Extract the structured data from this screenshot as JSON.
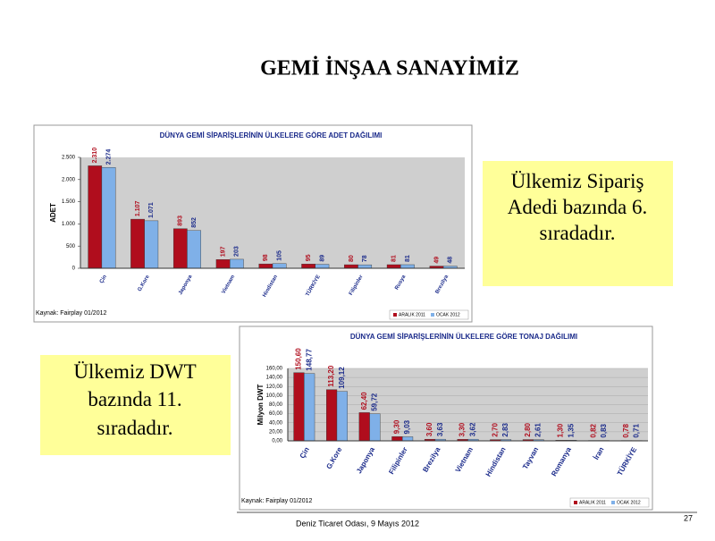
{
  "slide": {
    "title": "GEMİ İNŞAA SANAYİMİZ",
    "note1": "Ülkemiz Sipariş Adedi bazında 6. sıradadır.",
    "note2": "Ülkemiz DWT bazında 11. sıradadır.",
    "footer": "Deniz Ticaret Odası, 9 Mayıs 2012",
    "page": "27"
  },
  "chart_data": [
    {
      "type": "bar",
      "title": "DÜNYA GEMİ SİPARİŞLERİNİN ÜLKELERE GÖRE ADET DAĞILIMI",
      "ylabel": "ADET",
      "source": "Kaynak: Fairplay 01/2012",
      "categories": [
        "Çin",
        "G.Kore",
        "Japonya",
        "Vietnam",
        "Hindistan",
        "TÜRKİYE",
        "Filipinler",
        "Rusya",
        "Brezilya"
      ],
      "series": [
        {
          "name": "ARALIK 2011",
          "color": "#b00d1d",
          "values": [
            2310,
            1107,
            893,
            197,
            98,
            95,
            80,
            81,
            49
          ],
          "value_labels": [
            "2.310",
            "1.107",
            "893",
            "197",
            "98",
            "95",
            "80",
            "81",
            "49"
          ]
        },
        {
          "name": "OCAK 2012",
          "color": "#7fb0e8",
          "values": [
            2274,
            1071,
            852,
            203,
            105,
            89,
            78,
            81,
            48
          ],
          "value_labels": [
            "2.274",
            "1.071",
            "852",
            "203",
            "105",
            "89",
            "78",
            "81",
            "48"
          ]
        }
      ],
      "ylim": [
        0,
        2500
      ],
      "yticks": [
        0,
        500,
        {
          "value": 1000,
          "label": "1.000"
        },
        {
          "value": 1500,
          "label": "1.500"
        },
        {
          "value": 2000,
          "label": "2.000"
        },
        {
          "value": 2500,
          "label": "2.500"
        }
      ],
      "grid": false
    },
    {
      "type": "bar",
      "title": "DÜNYA GEMİ SİPARİŞLERİNİN ÜLKELERE GÖRE TONAJ DAĞILIMI",
      "ylabel": "Milyon DWT",
      "source": "Kaynak: Fairplay 01/2012",
      "categories": [
        "Çin",
        "G.Kore",
        "Japonya",
        "Filipinler",
        "Brezilya",
        "Vietnam",
        "Hindistan",
        "Tayvan",
        "Romanya",
        "İran",
        "TÜRKİYE"
      ],
      "series": [
        {
          "name": "ARALIK 2011",
          "color": "#b00d1d",
          "values": [
            150.6,
            113.2,
            62.4,
            9.3,
            3.6,
            3.3,
            2.7,
            2.8,
            1.3,
            0.82,
            0.78
          ],
          "value_labels": [
            "150,60",
            "113,20",
            "62,40",
            "9,30",
            "3,60",
            "3,30",
            "2,70",
            "2,80",
            "1,30",
            "0,82",
            "0,78"
          ]
        },
        {
          "name": "OCAK 2012",
          "color": "#7fb0e8",
          "values": [
            148.77,
            109.12,
            59.72,
            9.03,
            3.63,
            3.62,
            2.83,
            2.61,
            1.35,
            0.83,
            0.71
          ],
          "value_labels": [
            "148,77",
            "109,12",
            "59,72",
            "9,03",
            "3,63",
            "3,62",
            "2,83",
            "2,61",
            "1,35",
            "0,83",
            "0,71"
          ]
        }
      ],
      "ylim": [
        0,
        160
      ],
      "yticks": [
        {
          "value": 0,
          "label": "0,00"
        },
        {
          "value": 20,
          "label": "20,00"
        },
        {
          "value": 40,
          "label": "40,00"
        },
        {
          "value": 60,
          "label": "60,00"
        },
        {
          "value": 80,
          "label": "80,00"
        },
        {
          "value": 100,
          "label": "100,00"
        },
        {
          "value": 120,
          "label": "120,00"
        },
        {
          "value": 140,
          "label": "140,00"
        },
        {
          "value": 160,
          "label": "160,00"
        }
      ],
      "grid": true
    }
  ]
}
